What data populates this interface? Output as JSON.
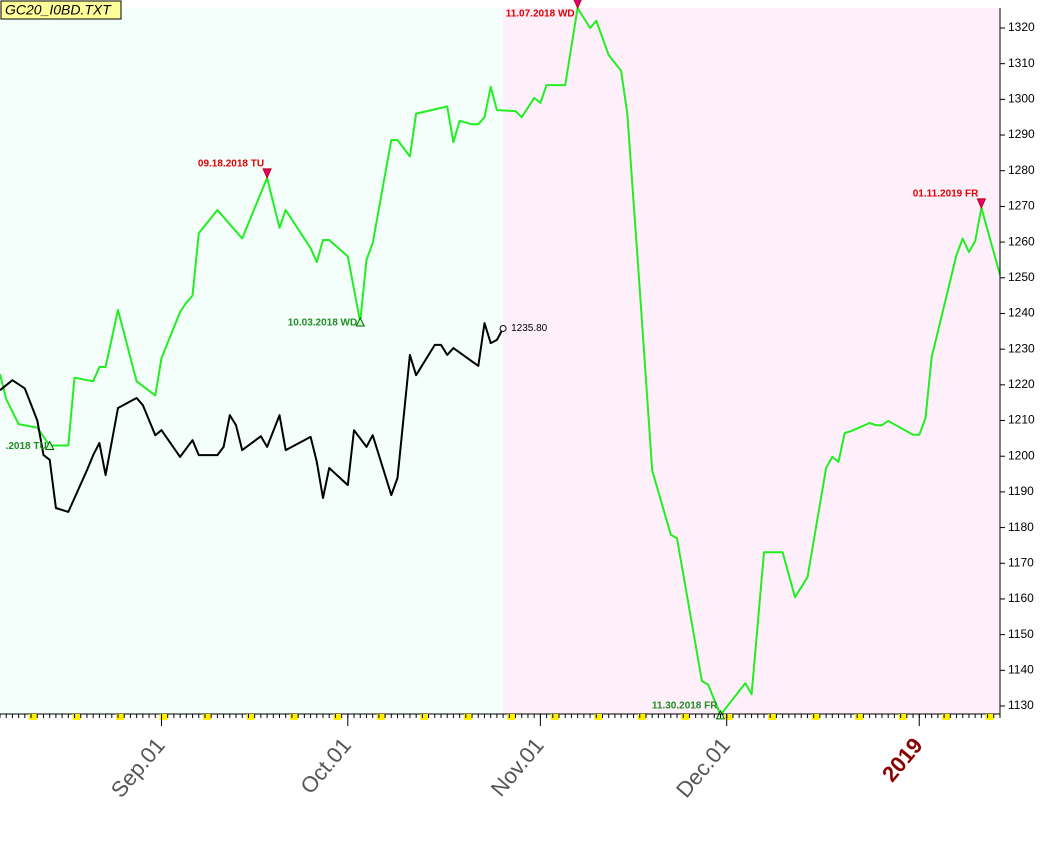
{
  "chart_data": {
    "type": "line",
    "title": "GC20_I0BD.TXT",
    "xlim": [
      "2018-08-06",
      "2019-01-14"
    ],
    "ylim": [
      1127.2,
      1325.6
    ],
    "yticks": [
      1130,
      1140,
      1150,
      1160,
      1170,
      1180,
      1190,
      1200,
      1210,
      1220,
      1230,
      1240,
      1250,
      1260,
      1270,
      1280,
      1290,
      1300,
      1310,
      1320
    ],
    "xticks": [
      {
        "value": "2018-09-01",
        "label": "Sep.01"
      },
      {
        "value": "2018-10-01",
        "label": "Oct.01"
      },
      {
        "value": "2018-11-01",
        "label": "Nov.01"
      },
      {
        "value": "2018-12-01",
        "label": "Dec.01"
      },
      {
        "value": "2019-01-01",
        "label": "2019"
      }
    ],
    "series": [
      {
        "color": "#22ee22",
        "x": [
          "2018-08-06",
          "2018-08-07",
          "2018-08-09",
          "2018-08-12",
          "2018-08-14",
          "2018-08-17",
          "2018-08-18",
          "2018-08-21",
          "2018-08-22",
          "2018-08-23",
          "2018-08-25",
          "2018-08-28",
          "2018-08-31",
          "2018-09-01",
          "2018-09-04",
          "2018-09-05",
          "2018-09-06",
          "2018-09-07",
          "2018-09-10",
          "2018-09-12",
          "2018-09-13",
          "2018-09-14",
          "2018-09-18",
          "2018-09-20",
          "2018-09-21",
          "2018-09-25",
          "2018-09-26",
          "2018-09-27",
          "2018-09-28",
          "2018-10-01",
          "2018-10-03",
          "2018-10-04",
          "2018-10-05",
          "2018-10-08",
          "2018-10-09",
          "2018-10-11",
          "2018-10-12",
          "2018-10-17",
          "2018-10-18",
          "2018-10-19",
          "2018-10-21",
          "2018-10-22",
          "2018-10-23",
          "2018-10-24",
          "2018-10-25",
          "2018-10-28",
          "2018-10-29",
          "2018-10-31",
          "2018-11-01",
          "2018-11-02",
          "2018-11-05",
          "2018-11-07",
          "2018-11-09",
          "2018-11-10",
          "2018-11-12",
          "2018-11-14",
          "2018-11-15",
          "2018-11-17",
          "2018-11-19",
          "2018-11-22",
          "2018-11-23",
          "2018-11-27",
          "2018-11-28",
          "2018-11-30",
          "2018-12-04",
          "2018-12-05",
          "2018-12-07",
          "2018-12-10",
          "2018-12-12",
          "2018-12-14",
          "2018-12-17",
          "2018-12-18",
          "2018-12-19",
          "2018-12-20",
          "2018-12-21",
          "2018-12-24",
          "2018-12-25",
          "2018-12-26",
          "2018-12-27",
          "2018-12-31",
          "2019-01-01",
          "2019-01-02",
          "2019-01-03",
          "2019-01-07",
          "2019-01-08",
          "2019-01-09",
          "2019-01-10",
          "2019-01-11",
          "2019-01-14"
        ],
        "values": [
          1223,
          1216,
          1209,
          1208,
          1203,
          1203,
          1222,
          1221,
          1225,
          1225,
          1241,
          1221,
          1217,
          1227.5,
          1240.4,
          1243,
          1245,
          1262.5,
          1269,
          1265,
          1263,
          1261,
          1278,
          1264,
          1269,
          1258.3,
          1254.4,
          1260.6,
          1260.6,
          1256,
          1237.6,
          1255,
          1259.7,
          1288.6,
          1288.6,
          1284,
          1296,
          1298,
          1288,
          1294,
          1293,
          1293,
          1295,
          1303.5,
          1297,
          1296.7,
          1295,
          1300.4,
          1299,
          1304,
          1304,
          1325.6,
          1320,
          1322,
          1312.4,
          1308,
          1296,
          1246.6,
          1196,
          1178,
          1177,
          1137,
          1136,
          1127.5,
          1136.4,
          1133.3,
          1173.1,
          1173.1,
          1160.5,
          1166.1,
          1196.7,
          1199.8,
          1198.4,
          1206.5,
          1207,
          1209.3,
          1208.7,
          1208.7,
          1209.9,
          1206,
          1206,
          1210.7,
          1227.8,
          1256.4,
          1261,
          1257.2,
          1260.3,
          1269.6,
          1250.8
        ]
      },
      {
        "color": "#000000",
        "x": [
          "2018-08-06",
          "2018-08-08",
          "2018-08-10",
          "2018-08-12",
          "2018-08-13",
          "2018-08-14",
          "2018-08-15",
          "2018-08-17",
          "2018-08-20",
          "2018-08-21",
          "2018-08-22",
          "2018-08-23",
          "2018-08-25",
          "2018-08-28",
          "2018-08-29",
          "2018-08-31",
          "2018-09-01",
          "2018-09-04",
          "2018-09-06",
          "2018-09-07",
          "2018-09-10",
          "2018-09-11",
          "2018-09-12",
          "2018-09-13",
          "2018-09-14",
          "2018-09-17",
          "2018-09-18",
          "2018-09-20",
          "2018-09-21",
          "2018-09-25",
          "2018-09-26",
          "2018-09-27",
          "2018-09-28",
          "2018-10-01",
          "2018-10-02",
          "2018-10-04",
          "2018-10-05",
          "2018-10-08",
          "2018-10-09",
          "2018-10-11",
          "2018-10-12",
          "2018-10-15",
          "2018-10-16",
          "2018-10-17",
          "2018-10-18",
          "2018-10-22",
          "2018-10-23",
          "2018-10-24",
          "2018-10-25",
          "2018-10-26"
        ],
        "values": [
          1218.5,
          1221.3,
          1219,
          1210,
          1200.3,
          1199,
          1185.5,
          1184.4,
          1196.1,
          1200.3,
          1203.7,
          1194.7,
          1213.5,
          1216.3,
          1214.3,
          1205.9,
          1207.3,
          1199.8,
          1204.5,
          1200.3,
          1200.3,
          1202.6,
          1211.5,
          1208.7,
          1201.7,
          1205.6,
          1202.6,
          1211.5,
          1201.7,
          1205.4,
          1198.4,
          1188.3,
          1196.7,
          1191.9,
          1207.3,
          1202.6,
          1205.9,
          1189.1,
          1193.9,
          1228.4,
          1222.7,
          1231.2,
          1231.2,
          1228.4,
          1230.3,
          1225.3,
          1237.3,
          1231.7,
          1232.6,
          1235.8
        ]
      }
    ],
    "last_price": {
      "x": "2018-10-26",
      "value": 1235.8,
      "label": "1235.80"
    },
    "annotations": [
      {
        "text": ".2018 TU",
        "x": "2018-08-14",
        "value": 1203,
        "kind": "low"
      },
      {
        "text": "09.18.2018 TU",
        "x": "2018-09-18",
        "value": 1278,
        "kind": "high"
      },
      {
        "text": "10.03.2018 WD",
        "x": "2018-10-03",
        "value": 1237.6,
        "kind": "low"
      },
      {
        "text": "11.07.2018 WD",
        "x": "2018-11-07",
        "value": 1325.6,
        "kind": "high"
      },
      {
        "text": "11.30.2018 FR",
        "x": "2018-11-30",
        "value": 1127.5,
        "kind": "low"
      },
      {
        "text": "01.11.2019 FR",
        "x": "2019-01-11",
        "value": 1269.6,
        "kind": "high"
      }
    ]
  }
}
